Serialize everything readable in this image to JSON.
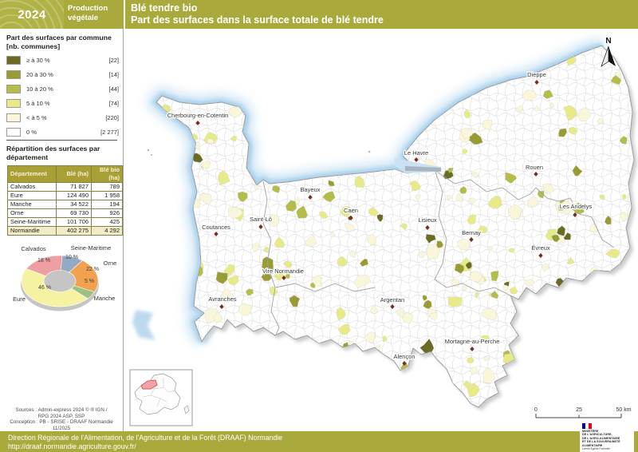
{
  "header": {
    "year": "2024",
    "category": "Production végétale",
    "title": "Blé tendre bio",
    "subtitle": "Part des surfaces dans la surface totale de blé tendre"
  },
  "legend": {
    "title_line1": "Part des surfaces par commune",
    "title_line2": "[nb. communes]",
    "items": [
      {
        "label": "≥ à 30 %",
        "count": "[22]",
        "color": "#6b6b23"
      },
      {
        "label": "20 à 30 %",
        "count": "[14]",
        "color": "#999b33"
      },
      {
        "label": "10 à 20 %",
        "count": "[44]",
        "color": "#b4bc4a"
      },
      {
        "label": "5 à 10 %",
        "count": "[74]",
        "color": "#e6eb87"
      },
      {
        "label": "< à 5 %",
        "count": "[220]",
        "color": "#faf6da"
      },
      {
        "label": "0 %",
        "count": "[2 277]",
        "color": "#ffffff"
      }
    ]
  },
  "table": {
    "title_line1": "Répartition des surfaces par",
    "title_line2": "département",
    "columns": [
      "Département",
      "Blé (ha)",
      "Blé bio (ha)"
    ],
    "rows": [
      [
        "Calvados",
        "71 827",
        "789"
      ],
      [
        "Eure",
        "124 490",
        "1 958"
      ],
      [
        "Manche",
        "34 522",
        "194"
      ],
      [
        "Orne",
        "69 730",
        "926"
      ],
      [
        "Seine-Maritime",
        "101 706",
        "425"
      ]
    ],
    "total_row": [
      "Normandie",
      "402 275",
      "4 292"
    ]
  },
  "chart_data": {
    "type": "pie",
    "donut": true,
    "unit": "%",
    "slices": [
      {
        "label": "Seine-Maritime",
        "value": 10,
        "color": "#93aac5"
      },
      {
        "label": "Orne",
        "value": 22,
        "color": "#f2a24e"
      },
      {
        "label": "Manche",
        "value": 5,
        "color": "#9dc184"
      },
      {
        "label": "Eure",
        "value": 46,
        "color": "#f5f2a2"
      },
      {
        "label": "Calvados",
        "value": 18,
        "color": "#ee9fa2"
      }
    ]
  },
  "map": {
    "north_label": "N",
    "scale": {
      "start": "0",
      "mid": "25",
      "end": "50 km"
    },
    "cities": [
      {
        "name": "Cherbourg-en-Cotentin"
      },
      {
        "name": "Dieppe"
      },
      {
        "name": "Le Havre"
      },
      {
        "name": "Rouen"
      },
      {
        "name": "Bayeux"
      },
      {
        "name": "Caen"
      },
      {
        "name": "Saint-Lô"
      },
      {
        "name": "Lisieux"
      },
      {
        "name": "Les Andelys"
      },
      {
        "name": "Coutances"
      },
      {
        "name": "Bernay"
      },
      {
        "name": "Évreux"
      },
      {
        "name": "Vire Normandie"
      },
      {
        "name": "Avranches"
      },
      {
        "name": "Argentan"
      },
      {
        "name": "Mortagne-au-Perche"
      },
      {
        "name": "Alençon"
      }
    ]
  },
  "sources": {
    "line1": "Sources : Admin-express 2024 © ® IGN /",
    "line2": "RPG 2024 ASP, SSP",
    "line3": "Conception : PB - SRISE - DRAAF Normandie 11/2025"
  },
  "footer": {
    "line1": "Direction Régionale de l'Alimentation, de l'Agriculture et de la Forêt (DRAAF) Normandie",
    "line2": "http://draaf.normandie.agriculture.gouv.fr/"
  },
  "ministry": {
    "lines": [
      "MINISTÈRE",
      "DE L'AGRICULTURE,",
      "DE L'AGRO-ALIMENTAIRE",
      "ET DE LA SOUVERAINETÉ",
      "ALIMENTAIRE"
    ],
    "motto": [
      "Liberté",
      "Égalité",
      "Fraternité"
    ]
  }
}
